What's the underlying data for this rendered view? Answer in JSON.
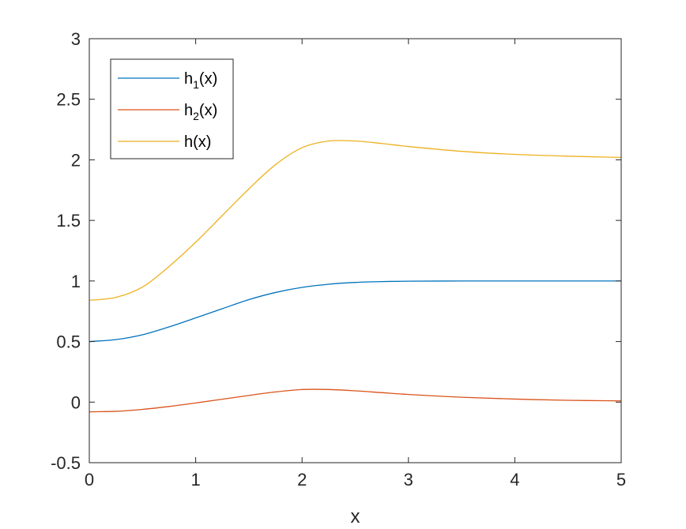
{
  "chart_data": {
    "type": "line",
    "title": "",
    "xlabel": "x",
    "ylabel": "",
    "xlim": [
      0,
      5
    ],
    "ylim": [
      -0.5,
      3
    ],
    "xticks": [
      "0",
      "1",
      "2",
      "3",
      "4",
      "5"
    ],
    "yticks": [
      "-0.5",
      "0",
      "0.5",
      "1",
      "1.5",
      "2",
      "2.5",
      "3"
    ],
    "grid": false,
    "legend_position": "top-left",
    "series": [
      {
        "name_base": "h",
        "name_sub": "1",
        "name_tail": "(x)",
        "color": "#0072BD",
        "x": [
          0,
          0.25,
          0.5,
          0.75,
          1,
          1.25,
          1.5,
          1.75,
          2,
          2.25,
          2.5,
          2.75,
          3,
          3.5,
          4,
          4.5,
          5
        ],
        "y": [
          0.5,
          0.516,
          0.556,
          0.621,
          0.695,
          0.771,
          0.846,
          0.905,
          0.947,
          0.973,
          0.988,
          0.995,
          0.998,
          1.0,
          1.0,
          1.0,
          1.0
        ]
      },
      {
        "name_base": "h",
        "name_sub": "2",
        "name_tail": "(x)",
        "color": "#D95319",
        "x": [
          0,
          0.25,
          0.5,
          0.75,
          1,
          1.25,
          1.5,
          1.75,
          2,
          2.25,
          2.5,
          2.75,
          3,
          3.5,
          4,
          4.5,
          5
        ],
        "y": [
          -0.08,
          -0.076,
          -0.06,
          -0.036,
          -0.007,
          0.024,
          0.055,
          0.084,
          0.104,
          0.104,
          0.093,
          0.078,
          0.063,
          0.04,
          0.025,
          0.015,
          0.01
        ]
      },
      {
        "name": "h(x)",
        "color": "#EDB120",
        "x": [
          0,
          0.25,
          0.5,
          0.75,
          1,
          1.25,
          1.5,
          1.75,
          2,
          2.25,
          2.5,
          2.75,
          3,
          3.5,
          4,
          4.5,
          5
        ],
        "y": [
          0.84,
          0.865,
          0.95,
          1.12,
          1.32,
          1.54,
          1.76,
          1.96,
          2.1,
          2.155,
          2.155,
          2.135,
          2.11,
          2.07,
          2.045,
          2.03,
          2.02
        ]
      }
    ]
  }
}
